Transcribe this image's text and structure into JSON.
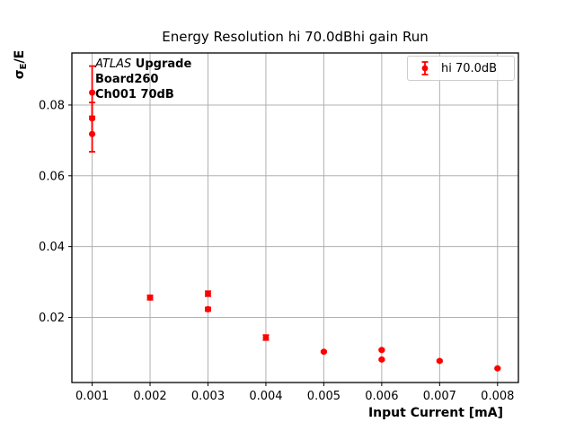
{
  "figure": {
    "title": "Energy Resolution hi 70.0dBhi gain Run",
    "xlabel": "Input Current [mA]",
    "ylabel_sigma": "σ",
    "ylabel_sub": "E",
    "ylabel_rest": "/E",
    "annotation": {
      "line1_italic": "ATLAS",
      "line1_bold": " Upgrade",
      "line2": "Board260",
      "line3": "Ch001 70dB"
    },
    "legend_label": "hi 70.0dB"
  },
  "colors": {
    "series": "#ff0000",
    "grid": "#b0b0b0",
    "spine": "#000000",
    "legend_border": "#cccccc",
    "text": "#000000"
  },
  "chart_data": {
    "type": "scatter",
    "title": "Energy Resolution hi 70.0dBhi gain Run",
    "xlabel": "Input Current [mA]",
    "ylabel": "sigma_E/E",
    "series": [
      {
        "name": "hi 70.0dB",
        "marker": "circle-with-errorbars",
        "color": "#ff0000",
        "points": [
          {
            "x": 0.001,
            "y": 0.0835,
            "yerr": 0.0075
          },
          {
            "x": 0.001,
            "y": 0.0762,
            "yerr": 0.0045
          },
          {
            "x": 0.001,
            "y": 0.0718,
            "yerr": 0.005
          },
          {
            "x": 0.002,
            "y": 0.0256,
            "yerr": 0.0006
          },
          {
            "x": 0.003,
            "y": 0.0267,
            "yerr": 0.0007
          },
          {
            "x": 0.003,
            "y": 0.0223,
            "yerr": 0.0005
          },
          {
            "x": 0.004,
            "y": 0.0143,
            "yerr": 0.0007
          },
          {
            "x": 0.005,
            "y": 0.0103,
            "yerr": 0.0002
          },
          {
            "x": 0.006,
            "y": 0.0108,
            "yerr": 0.0002
          },
          {
            "x": 0.006,
            "y": 0.0081,
            "yerr": 0.0002
          },
          {
            "x": 0.007,
            "y": 0.0077,
            "yerr": 0.0002
          },
          {
            "x": 0.008,
            "y": 0.0056,
            "yerr": 0.0002
          }
        ]
      }
    ],
    "x_ticks": [
      0.001,
      0.002,
      0.003,
      0.004,
      0.005,
      0.006,
      0.007,
      0.008
    ],
    "x_tick_labels": [
      "0.001",
      "0.002",
      "0.003",
      "0.004",
      "0.005",
      "0.006",
      "0.007",
      "0.008"
    ],
    "y_ticks": [
      0.02,
      0.04,
      0.06,
      0.08
    ],
    "y_tick_labels": [
      "0.02",
      "0.04",
      "0.06",
      "0.08"
    ],
    "xlim": [
      0.00065,
      0.00836
    ],
    "ylim": [
      0.0016,
      0.0947
    ],
    "grid": true,
    "legend_position": "upper right"
  }
}
